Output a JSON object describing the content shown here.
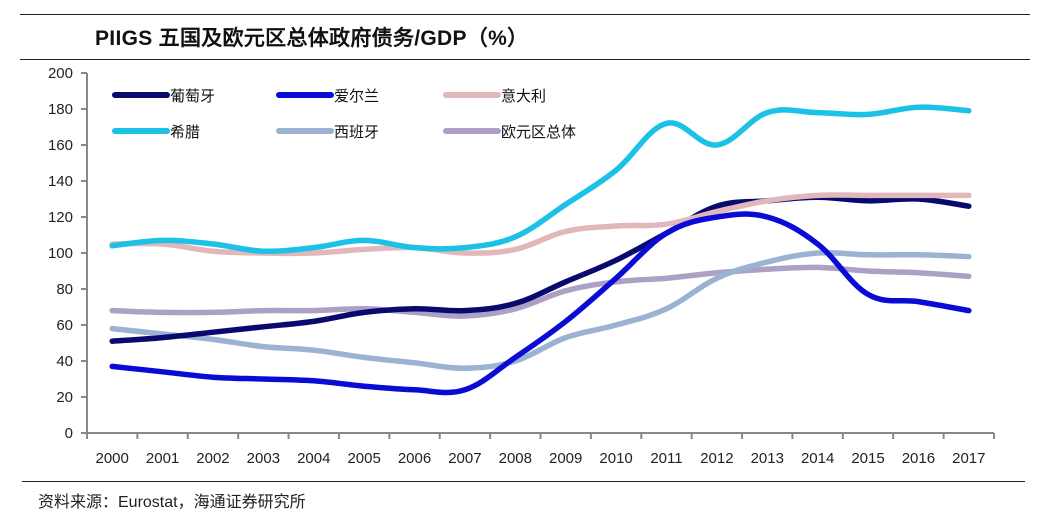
{
  "header": {
    "title": "PIIGS 五国及欧元区总体政府债务/GDP（%）"
  },
  "footer": {
    "source": "资料来源：Eurostat，海通证券研究所"
  },
  "chart_data": {
    "type": "line",
    "title": "PIIGS 五国及欧元区总体政府债务/GDP（%）",
    "xlabel": "",
    "ylabel": "",
    "ylim": [
      0,
      200
    ],
    "yticks": [
      0,
      20,
      40,
      60,
      80,
      100,
      120,
      140,
      160,
      180,
      200
    ],
    "grid": false,
    "legend_position": "top-left",
    "categories": [
      "2000",
      "2001",
      "2002",
      "2003",
      "2004",
      "2005",
      "2006",
      "2007",
      "2008",
      "2009",
      "2010",
      "2011",
      "2012",
      "2013",
      "2014",
      "2015",
      "2016",
      "2017"
    ],
    "series": [
      {
        "name": "葡萄牙",
        "color": "#0a0a6e",
        "values": [
          51,
          53,
          56,
          59,
          62,
          67,
          69,
          68,
          72,
          84,
          96,
          111,
          126,
          129,
          131,
          129,
          130,
          126
        ]
      },
      {
        "name": "爱尔兰",
        "color": "#0b0bd6",
        "values": [
          37,
          34,
          31,
          30,
          29,
          26,
          24,
          24,
          42,
          62,
          86,
          111,
          120,
          120,
          105,
          77,
          73,
          68
        ]
      },
      {
        "name": "意大利",
        "color": "#e2b7bb",
        "values": [
          105,
          105,
          101,
          100,
          100,
          102,
          103,
          100,
          102,
          112,
          115,
          116,
          123,
          129,
          132,
          132,
          132,
          132
        ]
      },
      {
        "name": "希腊",
        "color": "#1cc1e6",
        "values": [
          104,
          107,
          105,
          101,
          103,
          107,
          103,
          103,
          109,
          127,
          146,
          172,
          160,
          178,
          178,
          177,
          181,
          179
        ]
      },
      {
        "name": "西班牙",
        "color": "#9bb2d2",
        "values": [
          58,
          55,
          52,
          48,
          46,
          42,
          39,
          36,
          40,
          53,
          60,
          69,
          86,
          95,
          100,
          99,
          99,
          98
        ]
      },
      {
        "name": "欧元区总体",
        "color": "#aca0c4",
        "values": [
          68,
          67,
          67,
          68,
          68,
          69,
          67,
          65,
          69,
          79,
          84,
          86,
          89,
          91,
          92,
          90,
          89,
          87
        ]
      }
    ]
  }
}
